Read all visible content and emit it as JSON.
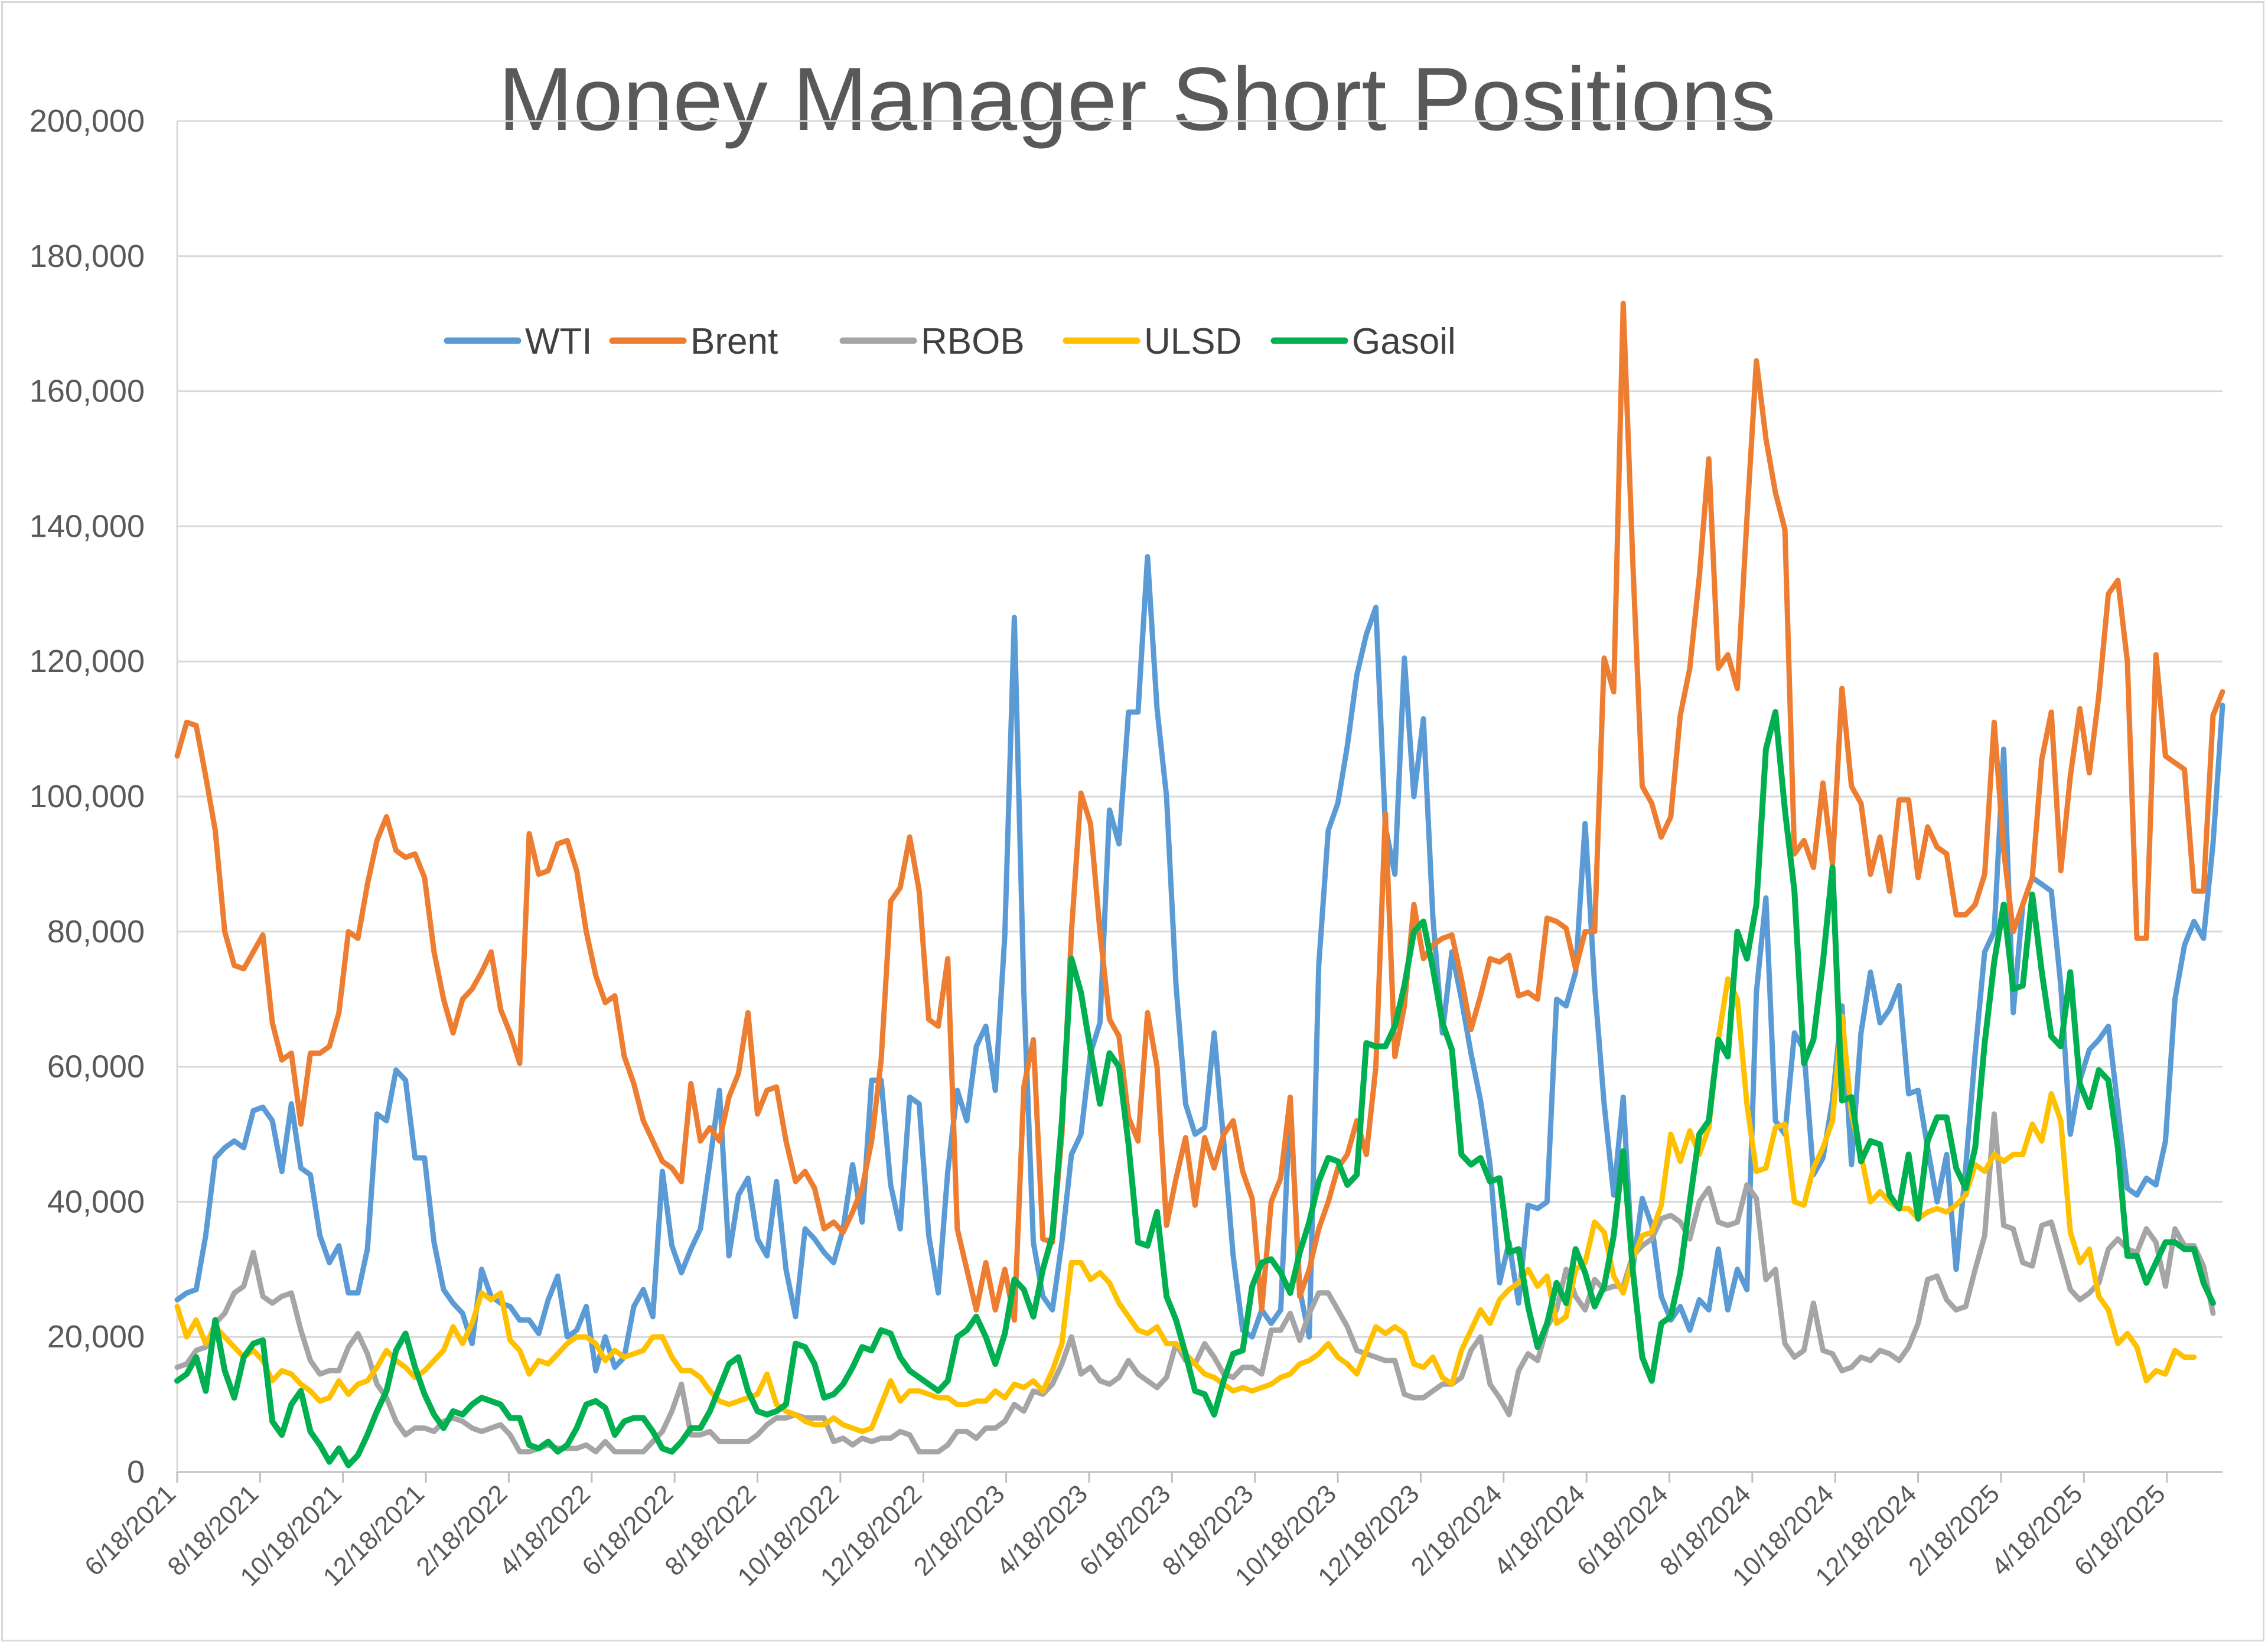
{
  "chart_data": {
    "type": "line",
    "title": "Money Manager Short Positions",
    "xlabel": "",
    "ylabel": "",
    "ylim": [
      0,
      200000
    ],
    "yticks": [
      "0",
      "20,000",
      "40,000",
      "60,000",
      "80,000",
      "100,000",
      "120,000",
      "140,000",
      "160,000",
      "180,000",
      "200,000"
    ],
    "xticks": [
      "6/18/2021",
      "8/18/2021",
      "10/18/2021",
      "12/18/2021",
      "2/18/2022",
      "4/18/2022",
      "6/18/2022",
      "8/18/2022",
      "10/18/2022",
      "12/18/2022",
      "2/18/2023",
      "4/18/2023",
      "6/18/2023",
      "8/18/2023",
      "10/18/2023",
      "12/18/2023",
      "2/18/2024",
      "4/18/2024",
      "6/18/2024",
      "8/18/2024",
      "10/18/2024",
      "12/18/2024",
      "2/18/2025",
      "4/18/2025",
      "6/18/2025"
    ],
    "x_start": "6/18/2021",
    "x_interval": "weekly",
    "grid": "horizontal",
    "legend_position": "top-left",
    "series": [
      {
        "name": "WTI",
        "color": "#5B9BD5",
        "values": [
          25500,
          26500,
          27000,
          35000,
          46500,
          48000,
          49000,
          48000,
          53500,
          54000,
          52000,
          44500,
          54500,
          45000,
          44000,
          35000,
          31000,
          33500,
          26500,
          26500,
          33000,
          53000,
          52000,
          59500,
          58000,
          46500,
          46500,
          34000,
          27000,
          25000,
          23500,
          19000,
          30000,
          26000,
          25000,
          24500,
          22500,
          22500,
          20500,
          25500,
          29000,
          20000,
          21000,
          24500,
          15000,
          20000,
          15500,
          17000,
          24500,
          27000,
          23000,
          44500,
          33500,
          29500,
          33000,
          36000,
          46000,
          56500,
          32000,
          41000,
          43500,
          34500,
          32000,
          43000,
          30000,
          23000,
          36000,
          34500,
          32500,
          31000,
          36000,
          45500,
          37000,
          58000,
          58000,
          42500,
          36000,
          55500,
          54500,
          35000,
          26500,
          44500,
          56500,
          52000,
          63000,
          66000,
          56500,
          79500,
          126500,
          71000,
          34000,
          26000,
          24000,
          34000,
          47000,
          50000,
          62000,
          66500,
          98000,
          93000,
          112500,
          112500,
          135500,
          113000,
          100000,
          72000,
          54500,
          50000,
          51000,
          65000,
          49000,
          32000,
          21000,
          20000,
          24000,
          22000,
          24000,
          55000,
          27000,
          20000,
          75000,
          95000,
          99000,
          107500,
          118000,
          124000,
          128000,
          95500,
          88500,
          120500,
          100000,
          111500,
          82000,
          65000,
          77000,
          70000,
          62000,
          55000,
          45500,
          28000,
          34000,
          25000,
          39500,
          39000,
          40000,
          70000,
          69000,
          74000,
          96000,
          72000,
          54500,
          41000,
          55500,
          30000,
          40500,
          36500,
          26000,
          22500,
          24500,
          21000,
          25500,
          24000,
          33000,
          24000,
          30000,
          27000,
          71000,
          85000,
          52000,
          50000,
          65000,
          62500,
          44000,
          46500,
          55000,
          69000,
          45500,
          65000,
          74000,
          66500,
          68500,
          72000,
          56000,
          56500,
          48000,
          40000,
          47000,
          30000,
          45000,
          62000,
          77000,
          80000,
          107000,
          68000,
          84000,
          88000,
          87000,
          86000,
          72000,
          50000,
          58000,
          62500,
          64000,
          66000,
          54000,
          42000,
          41000,
          43500,
          42500,
          49000,
          70000,
          78000,
          81500,
          79000,
          93000,
          113500
        ]
      },
      {
        "name": "Brent",
        "color": "#ED7D31",
        "values": [
          106000,
          111000,
          110500,
          103000,
          95000,
          80000,
          75000,
          74500,
          77000,
          79500,
          66500,
          61000,
          62000,
          51500,
          62000,
          62000,
          63000,
          68000,
          80000,
          79000,
          87000,
          93500,
          97000,
          92000,
          91000,
          91500,
          88000,
          77000,
          70000,
          65000,
          70000,
          71500,
          74000,
          77000,
          68500,
          65000,
          60500,
          94500,
          88500,
          89000,
          93000,
          93500,
          89000,
          80000,
          73500,
          69500,
          70500,
          61500,
          57500,
          52000,
          49000,
          46000,
          45000,
          43000,
          57500,
          49000,
          51000,
          49000,
          55500,
          59000,
          68000,
          53000,
          56500,
          57000,
          49000,
          43000,
          44500,
          42000,
          36000,
          37000,
          35500,
          38500,
          42000,
          49000,
          61000,
          84500,
          86500,
          94000,
          86000,
          67000,
          66000,
          76000,
          36000,
          30000,
          24000,
          31000,
          24000,
          30000,
          22500,
          57000,
          64000,
          34500,
          34000,
          50000,
          80000,
          100500,
          96000,
          80000,
          67000,
          64500,
          52500,
          49000,
          68000,
          60000,
          36500,
          43500,
          49500,
          39500,
          49500,
          45000,
          50000,
          52000,
          44500,
          40500,
          24000,
          40000,
          43500,
          55500,
          26000,
          30000,
          36000,
          40000,
          45000,
          47000,
          52000,
          47000,
          60000,
          97500,
          61500,
          69000,
          84000,
          76000,
          78000,
          79000,
          79500,
          73000,
          65500,
          70500,
          76000,
          75500,
          76500,
          70500,
          71000,
          70000,
          82000,
          81500,
          80500,
          74500,
          80000,
          80000,
          120500,
          115500,
          173000,
          135000,
          101500,
          99000,
          94000,
          97000,
          112000,
          119000,
          132500,
          150000,
          119000,
          121000,
          116000,
          141000,
          164500,
          153000,
          145000,
          139500,
          91500,
          93500,
          89500,
          102000,
          90000,
          116000,
          101500,
          99000,
          88500,
          94000,
          86000,
          99500,
          99500,
          88000,
          95500,
          92500,
          91500,
          82500,
          82500,
          84000,
          88500,
          111000,
          92000,
          80000,
          84000,
          88000,
          105500,
          112500,
          89000,
          103000,
          113000,
          103500,
          115000,
          130000,
          132000,
          120000,
          79000,
          79000,
          121000,
          106000,
          105000,
          104000,
          86000,
          86000,
          112000,
          115500
        ]
      },
      {
        "name": "RBOB",
        "color": "#A5A5A5",
        "values": [
          15500,
          16000,
          18000,
          18500,
          22000,
          23500,
          26500,
          27500,
          32500,
          26000,
          25000,
          26000,
          26500,
          21000,
          16500,
          14500,
          15000,
          15000,
          18500,
          20500,
          17500,
          13000,
          11000,
          7500,
          5500,
          6500,
          6500,
          6000,
          7500,
          8000,
          7500,
          6500,
          6000,
          6500,
          7000,
          5500,
          3000,
          3000,
          3500,
          4000,
          3500,
          3500,
          3500,
          4000,
          3000,
          4500,
          3000,
          3000,
          3000,
          3000,
          4500,
          6000,
          9000,
          13000,
          5500,
          5500,
          6000,
          4500,
          4500,
          4500,
          4500,
          5500,
          7000,
          8000,
          8000,
          8500,
          8000,
          8000,
          8000,
          4500,
          5000,
          4000,
          5000,
          4500,
          5000,
          5000,
          6000,
          5500,
          3000,
          3000,
          3000,
          4000,
          6000,
          6000,
          5000,
          6500,
          6500,
          7500,
          10000,
          9000,
          12000,
          11500,
          13000,
          16000,
          20000,
          14500,
          15500,
          13500,
          13000,
          14000,
          16500,
          14500,
          13500,
          12500,
          14000,
          19000,
          16500,
          16000,
          19000,
          17000,
          14500,
          14000,
          15500,
          15500,
          14500,
          21000,
          21000,
          23500,
          19500,
          23500,
          26500,
          26500,
          24000,
          21500,
          18000,
          17500,
          17000,
          16500,
          16500,
          11500,
          11000,
          11000,
          12000,
          13000,
          13000,
          14000,
          18000,
          20000,
          13000,
          11000,
          8500,
          15000,
          17500,
          16500,
          21500,
          24000,
          30000,
          26000,
          24000,
          28500,
          27000,
          27500,
          27500,
          32000,
          33500,
          34500,
          37500,
          38000,
          37000,
          34500,
          40000,
          42000,
          37000,
          36500,
          37000,
          42500,
          40500,
          28500,
          30000,
          19000,
          17000,
          18000,
          25000,
          18000,
          17500,
          15000,
          15500,
          17000,
          16500,
          18000,
          17500,
          16500,
          18500,
          22000,
          28500,
          29000,
          25500,
          24000,
          24500,
          30000,
          35000,
          53000,
          36500,
          36000,
          31000,
          30500,
          36500,
          37000,
          32000,
          27000,
          25500,
          26500,
          28000,
          33000,
          34500,
          33000,
          32500,
          36000,
          34000,
          27500,
          36000,
          33500,
          33500,
          30500,
          23500
        ]
      },
      {
        "name": "ULSD",
        "color": "#FFC000",
        "values": [
          24500,
          20000,
          22500,
          19000,
          21500,
          20000,
          18500,
          17000,
          18000,
          16500,
          13500,
          15000,
          14500,
          13000,
          12000,
          10500,
          11000,
          13500,
          11500,
          13000,
          13500,
          15500,
          18000,
          16500,
          15500,
          14000,
          15000,
          16500,
          18000,
          21500,
          19000,
          22000,
          26500,
          25500,
          26500,
          19500,
          18000,
          14500,
          16500,
          16000,
          17500,
          19000,
          20000,
          20000,
          19000,
          16500,
          18000,
          17000,
          17500,
          18000,
          20000,
          20000,
          17000,
          15000,
          15000,
          14000,
          12000,
          10500,
          10000,
          10500,
          11000,
          11500,
          14500,
          10000,
          9000,
          8500,
          7500,
          7000,
          7000,
          8000,
          7000,
          6500,
          6000,
          6500,
          10000,
          13500,
          10500,
          12000,
          12000,
          11500,
          11000,
          11000,
          10000,
          10000,
          10500,
          10500,
          12000,
          11000,
          13000,
          12500,
          13500,
          12000,
          15000,
          19000,
          31000,
          31000,
          28500,
          29500,
          28000,
          25000,
          23000,
          21000,
          20500,
          21500,
          19000,
          19000,
          17500,
          16000,
          14500,
          14000,
          13000,
          12000,
          12500,
          12000,
          12500,
          13000,
          14000,
          14500,
          16000,
          16500,
          17500,
          19000,
          17000,
          16000,
          14500,
          18000,
          21500,
          20500,
          21500,
          20500,
          16000,
          15500,
          17000,
          14000,
          13000,
          18000,
          21000,
          24000,
          22000,
          25500,
          27000,
          28000,
          30000,
          27500,
          29000,
          22000,
          23000,
          30000,
          31000,
          37000,
          35500,
          29000,
          26500,
          31500,
          35000,
          35500,
          39500,
          50000,
          46000,
          50500,
          47000,
          51000,
          64000,
          73000,
          70000,
          54500,
          44500,
          45000,
          51000,
          51500,
          40000,
          39500,
          45000,
          48000,
          52000,
          67500,
          53000,
          47000,
          40000,
          41500,
          40000,
          39000,
          39000,
          37500,
          38500,
          39000,
          38500,
          39500,
          41000,
          45500,
          44500,
          47000,
          46000,
          47000,
          47000,
          51500,
          49000,
          56000,
          52000,
          35500,
          31000,
          33000,
          26000,
          24000,
          19000,
          20500,
          18500,
          13500,
          15000,
          14500,
          18000,
          17000,
          17000
        ]
      },
      {
        "name": "Gasoil",
        "color": "#00B050",
        "values": [
          13500,
          14500,
          17000,
          12000,
          22500,
          15000,
          11000,
          17000,
          19000,
          19500,
          7500,
          5500,
          10000,
          12000,
          6000,
          4000,
          1500,
          3500,
          1000,
          2500,
          5500,
          9000,
          12000,
          18000,
          20500,
          15500,
          11500,
          8500,
          6500,
          9000,
          8500,
          10000,
          11000,
          10500,
          10000,
          8000,
          8000,
          4000,
          3500,
          4500,
          3000,
          4000,
          6500,
          10000,
          10500,
          9500,
          5500,
          7500,
          8000,
          8000,
          6000,
          3500,
          3000,
          4500,
          6500,
          6500,
          9000,
          12500,
          16000,
          17000,
          12000,
          9000,
          8500,
          9000,
          10000,
          19000,
          18500,
          16000,
          11000,
          11500,
          13000,
          15500,
          18500,
          18000,
          21000,
          20500,
          17000,
          15000,
          14000,
          13000,
          12000,
          13500,
          20000,
          21000,
          23000,
          20000,
          16000,
          20500,
          28500,
          27000,
          23000,
          30000,
          35000,
          52000,
          76000,
          71000,
          62500,
          54500,
          62000,
          60000,
          48500,
          34000,
          33500,
          38500,
          26000,
          22500,
          17500,
          12000,
          11500,
          8500,
          13500,
          17500,
          18000,
          27500,
          31000,
          31500,
          29500,
          26500,
          32500,
          37000,
          43000,
          46500,
          46000,
          42500,
          44000,
          63500,
          63000,
          63000,
          66000,
          72000,
          80000,
          81500,
          74500,
          66500,
          62500,
          47000,
          45500,
          46500,
          43000,
          43500,
          32500,
          33000,
          24500,
          18500,
          22000,
          28000,
          25000,
          33000,
          29500,
          24500,
          27500,
          35000,
          47500,
          30000,
          17000,
          13500,
          22000,
          23000,
          29500,
          40000,
          50000,
          52000,
          64000,
          61500,
          80000,
          76000,
          84000,
          107000,
          112500,
          98000,
          86000,
          60500,
          64000,
          75500,
          89500,
          55000,
          55500,
          46000,
          49000,
          48500,
          41000,
          39000,
          47000,
          37500,
          49000,
          52500,
          52500,
          45000,
          42000,
          48000,
          63500,
          75500,
          84000,
          71500,
          72000,
          85500,
          74000,
          64500,
          63000,
          74000,
          57500,
          54000,
          59500,
          58000,
          48000,
          32000,
          32000,
          28000,
          31000,
          34000,
          34000,
          33000,
          33000,
          28000,
          25000
        ]
      }
    ]
  }
}
